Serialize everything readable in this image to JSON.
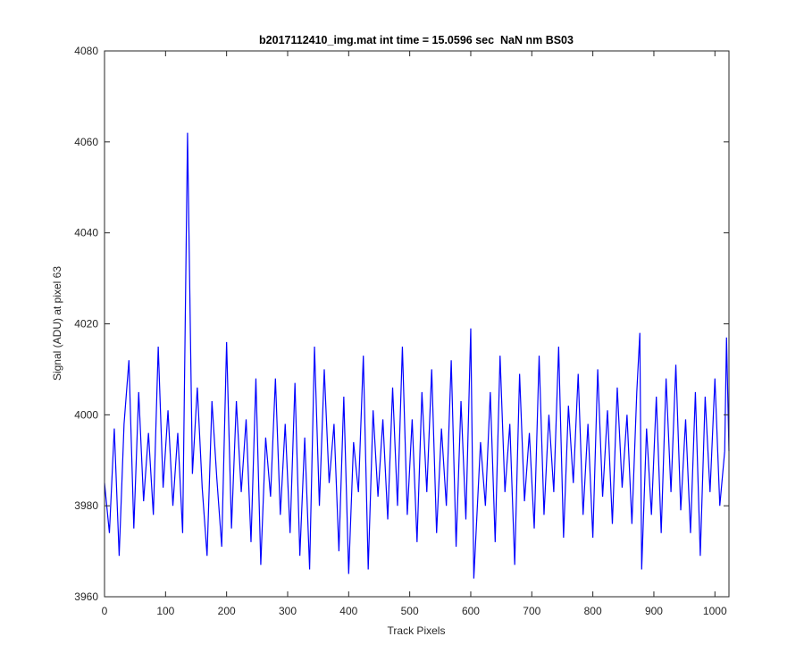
{
  "chart_data": {
    "type": "line",
    "title": "b2017112410_img.mat int time = 15.0596 sec  NaN nm BS03",
    "xlabel": "Track Pixels",
    "ylabel": "Signal (ADU) at pixel 63",
    "x": [
      0,
      8,
      16,
      24,
      32,
      40,
      48,
      56,
      64,
      72,
      80,
      88,
      96,
      104,
      112,
      120,
      128,
      136,
      144,
      152,
      160,
      168,
      176,
      184,
      192,
      200,
      208,
      216,
      224,
      232,
      240,
      248,
      256,
      264,
      272,
      280,
      288,
      296,
      304,
      312,
      320,
      328,
      336,
      344,
      352,
      360,
      368,
      376,
      384,
      392,
      400,
      408,
      416,
      424,
      432,
      440,
      448,
      456,
      464,
      472,
      480,
      488,
      496,
      504,
      512,
      520,
      528,
      536,
      544,
      552,
      560,
      568,
      576,
      584,
      592,
      600,
      605,
      616,
      624,
      632,
      640,
      648,
      656,
      664,
      672,
      680,
      688,
      696,
      704,
      712,
      720,
      728,
      736,
      744,
      752,
      760,
      768,
      776,
      784,
      792,
      800,
      808,
      816,
      824,
      832,
      840,
      848,
      856,
      864,
      872,
      877,
      880,
      888,
      896,
      904,
      912,
      920,
      928,
      936,
      944,
      952,
      960,
      968,
      976,
      984,
      992,
      1000,
      1008,
      1016,
      1019,
      1023
    ],
    "series": [
      {
        "name": "signal",
        "color": "#0000ff",
        "values": [
          3985,
          3974,
          3997,
          3969,
          3998,
          4012,
          3975,
          4005,
          3981,
          3996,
          3978,
          4015,
          3984,
          4001,
          3980,
          3996,
          3974,
          4062,
          3987,
          4006,
          3984,
          3969,
          4003,
          3986,
          3971,
          4016,
          3975,
          4003,
          3983,
          3999,
          3972,
          4008,
          3967,
          3995,
          3982,
          4008,
          3978,
          3998,
          3974,
          4007,
          3969,
          3995,
          3966,
          4015,
          3980,
          4010,
          3985,
          3998,
          3970,
          4004,
          3965,
          3994,
          3983,
          4013,
          3966,
          4001,
          3982,
          3999,
          3977,
          4006,
          3980,
          4015,
          3978,
          3999,
          3972,
          4005,
          3983,
          4010,
          3974,
          3997,
          3980,
          4012,
          3971,
          4003,
          3977,
          4019,
          3964,
          3994,
          3980,
          4005,
          3972,
          4013,
          3983,
          3998,
          3967,
          4009,
          3981,
          3996,
          3975,
          4013,
          3978,
          4000,
          3983,
          4015,
          3973,
          4002,
          3985,
          4009,
          3978,
          3998,
          3973,
          4010,
          3982,
          4001,
          3976,
          4006,
          3984,
          4000,
          3976,
          4005,
          4018,
          3966,
          3997,
          3978,
          4004,
          3974,
          4008,
          3983,
          4011,
          3979,
          3999,
          3974,
          4005,
          3969,
          4004,
          3983,
          4008,
          3980,
          3992,
          4017,
          3992
        ]
      }
    ],
    "xlim": [
      0,
      1023
    ],
    "ylim": [
      3960,
      4080
    ],
    "xticks": [
      0,
      100,
      200,
      300,
      400,
      500,
      600,
      700,
      800,
      900,
      1000
    ],
    "yticks": [
      3960,
      3980,
      4000,
      4020,
      4040,
      4060,
      4080
    ]
  }
}
